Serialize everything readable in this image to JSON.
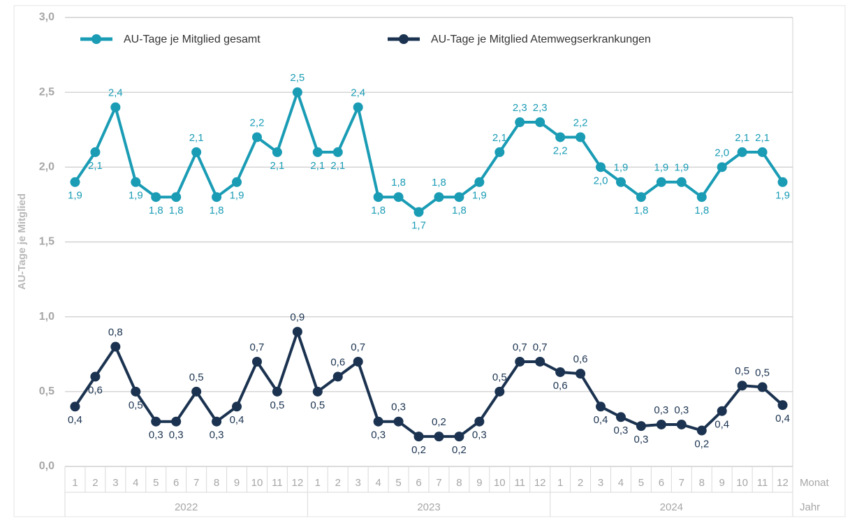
{
  "chart_data": {
    "type": "line",
    "y_label": "AU-Tage je Mitglied",
    "x_label": "Monat",
    "group_label": "Jahr",
    "categories": [
      "1",
      "2",
      "3",
      "4",
      "5",
      "6",
      "7",
      "8",
      "9",
      "10",
      "11",
      "12",
      "1",
      "2",
      "3",
      "4",
      "5",
      "6",
      "7",
      "8",
      "9",
      "10",
      "11",
      "12",
      "1",
      "2",
      "3",
      "4",
      "5",
      "6",
      "7",
      "8",
      "9",
      "10",
      "11",
      "12"
    ],
    "years": [
      "2022",
      "2023",
      "2024"
    ],
    "ylim": [
      0,
      3
    ],
    "yticks": [
      {
        "value": 0,
        "label": "0,0"
      },
      {
        "value": 0.5,
        "label": "0,5"
      },
      {
        "value": 1,
        "label": "1,0"
      },
      {
        "value": 1.5,
        "label": "1,5"
      },
      {
        "value": 2,
        "label": "2,0"
      },
      {
        "value": 2.5,
        "label": "2,5"
      },
      {
        "value": 3,
        "label": "3,0"
      }
    ],
    "grid": true,
    "series": [
      {
        "name": "AU-Tage je Mitglied gesamt",
        "color": "#1a9cb5",
        "values": [
          1.9,
          2.1,
          2.4,
          1.9,
          1.8,
          1.8,
          2.1,
          1.8,
          1.9,
          2.2,
          2.1,
          2.5,
          2.1,
          2.1,
          2.4,
          1.8,
          1.8,
          1.7,
          1.8,
          1.8,
          1.9,
          2.1,
          2.3,
          2.3,
          2.2,
          2.2,
          2.0,
          1.9,
          1.8,
          1.9,
          1.9,
          1.8,
          2.0,
          2.1,
          2.1,
          1.9
        ],
        "value_labels": [
          "1,9",
          "2,1",
          "2,4",
          "1,9",
          "1,8",
          "1,8",
          "2,1",
          "1,8",
          "1,9",
          "2,2",
          "2,1",
          "2,5",
          "2,1",
          "2,1",
          "2,4",
          "1,8",
          "1,8",
          "1,7",
          "1,8",
          "1,8",
          "1,9",
          "2,1",
          "2,3",
          "2,3",
          "2,2",
          "2,2",
          "2,0",
          "1,9",
          "1,8",
          "1,9",
          "1,9",
          "1,8",
          "2,0",
          "2,1",
          "2,1",
          "1,9"
        ]
      },
      {
        "name": "AU-Tage je Mitglied Atemwegserkrankungen",
        "color": "#1b3350",
        "values": [
          0.4,
          0.6,
          0.8,
          0.5,
          0.3,
          0.3,
          0.5,
          0.3,
          0.4,
          0.7,
          0.5,
          0.9,
          0.5,
          0.6,
          0.7,
          0.3,
          0.3,
          0.2,
          0.2,
          0.2,
          0.3,
          0.5,
          0.7,
          0.7,
          0.63,
          0.62,
          0.4,
          0.33,
          0.27,
          0.28,
          0.28,
          0.24,
          0.37,
          0.54,
          0.53,
          0.41
        ],
        "value_labels": [
          "0,4",
          "0,6",
          "0,8",
          "0,5",
          "0,3",
          "0,3",
          "0,5",
          "0,3",
          "0,4",
          "0,7",
          "0,5",
          "0,9",
          "0,5",
          "0,6",
          "0,7",
          "0,3",
          "0,3",
          "0,2",
          "0,2",
          "0,2",
          "0,3",
          "0,5",
          "0,7",
          "0,7",
          "0,6",
          "0,6",
          "0,4",
          "0,3",
          "0,3",
          "0,3",
          "0,3",
          "0,2",
          "0,4",
          "0,5",
          "0,5",
          "0,4"
        ]
      }
    ]
  }
}
